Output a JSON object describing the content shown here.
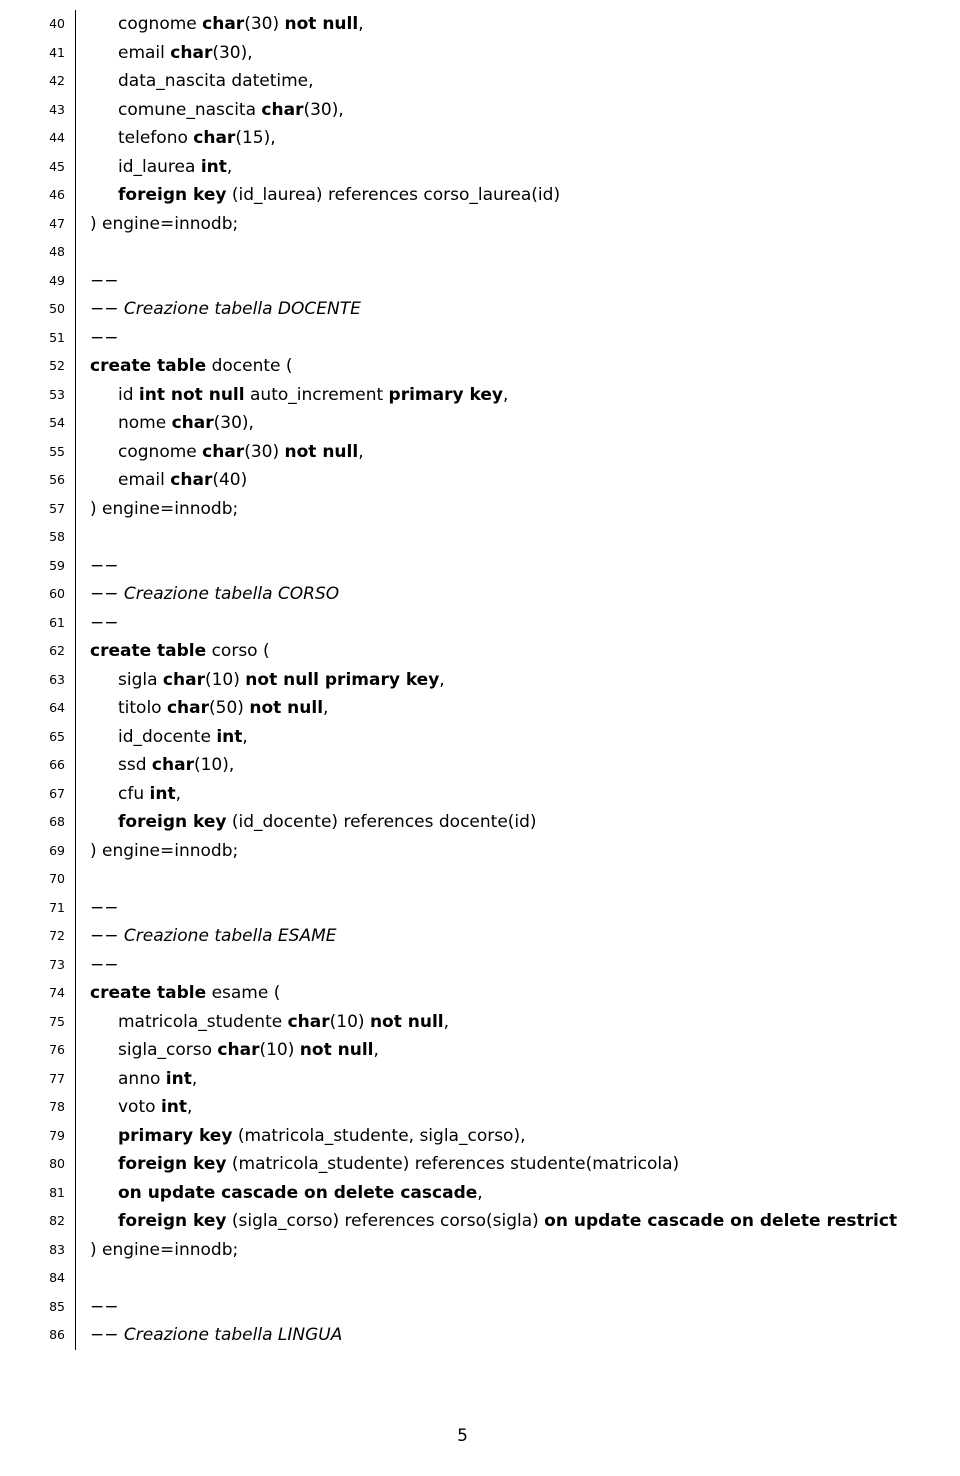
{
  "pageNumber": "5",
  "gutter": {
    "start": 40,
    "end": 86
  },
  "lines": [
    {
      "n": 40,
      "html": "<span class='ind1'>cognome <span class='b'>char</span>(30) <span class='b'>not null</span>,</span>"
    },
    {
      "n": 41,
      "html": "<span class='ind1'>email <span class='b'>char</span>(30),</span>"
    },
    {
      "n": 42,
      "html": "<span class='ind1'>data_nascita datetime,</span>"
    },
    {
      "n": 43,
      "html": "<span class='ind1'>comune_nascita <span class='b'>char</span>(30),</span>"
    },
    {
      "n": 44,
      "html": "<span class='ind1'>telefono <span class='b'>char</span>(15),</span>"
    },
    {
      "n": 45,
      "html": "<span class='ind1'>id_laurea <span class='b'>int</span>,</span>"
    },
    {
      "n": 46,
      "html": "<span class='ind1'><span class='b'>foreign key</span> (id_laurea) references corso_laurea(id)</span>"
    },
    {
      "n": 47,
      "html": ") engine=innodb;"
    },
    {
      "n": 48,
      "html": ""
    },
    {
      "n": 49,
      "html": "−−"
    },
    {
      "n": 50,
      "html": "<span class='it'>−− Creazione tabella DOCENTE</span>"
    },
    {
      "n": 51,
      "html": "−−"
    },
    {
      "n": 52,
      "html": "<span class='b'>create table</span> docente ("
    },
    {
      "n": 53,
      "html": "<span class='ind1'>id <span class='b'>int not null</span> auto_increment <span class='b'>primary key</span>,</span>"
    },
    {
      "n": 54,
      "html": "<span class='ind1'>nome <span class='b'>char</span>(30),</span>"
    },
    {
      "n": 55,
      "html": "<span class='ind1'>cognome <span class='b'>char</span>(30) <span class='b'>not null</span>,</span>"
    },
    {
      "n": 56,
      "html": "<span class='ind1'>email <span class='b'>char</span>(40)</span>"
    },
    {
      "n": 57,
      "html": ") engine=innodb;"
    },
    {
      "n": 58,
      "html": ""
    },
    {
      "n": 59,
      "html": "−−"
    },
    {
      "n": 60,
      "html": "<span class='it'>−− Creazione tabella CORSO</span>"
    },
    {
      "n": 61,
      "html": "−−"
    },
    {
      "n": 62,
      "html": "<span class='b'>create table</span> corso ("
    },
    {
      "n": 63,
      "html": "<span class='ind1'>sigla <span class='b'>char</span>(10) <span class='b'>not null primary key</span>,</span>"
    },
    {
      "n": 64,
      "html": "<span class='ind1'>titolo <span class='b'>char</span>(50) <span class='b'>not null</span>,</span>"
    },
    {
      "n": 65,
      "html": "<span class='ind1'>id_docente <span class='b'>int</span>,</span>"
    },
    {
      "n": 66,
      "html": "<span class='ind1'>ssd <span class='b'>char</span>(10),</span>"
    },
    {
      "n": 67,
      "html": "<span class='ind1'>cfu <span class='b'>int</span>,</span>"
    },
    {
      "n": 68,
      "html": "<span class='ind1'><span class='b'>foreign key</span> (id_docente) references docente(id)</span>"
    },
    {
      "n": 69,
      "html": ") engine=innodb;"
    },
    {
      "n": 70,
      "html": ""
    },
    {
      "n": 71,
      "html": "−−"
    },
    {
      "n": 72,
      "html": "<span class='it'>−− Creazione tabella ESAME</span>"
    },
    {
      "n": 73,
      "html": "−−"
    },
    {
      "n": 74,
      "html": "<span class='b'>create table</span> esame ("
    },
    {
      "n": 75,
      "html": "<span class='ind1'>matricola_studente <span class='b'>char</span>(10) <span class='b'>not null</span>,</span>"
    },
    {
      "n": 76,
      "html": "<span class='ind1'>sigla_corso <span class='b'>char</span>(10) <span class='b'>not null</span>,</span>"
    },
    {
      "n": 77,
      "html": "<span class='ind1'>anno <span class='b'>int</span>,</span>"
    },
    {
      "n": 78,
      "html": "<span class='ind1'>voto <span class='b'>int</span>,</span>"
    },
    {
      "n": 79,
      "html": "<span class='ind1'><span class='b'>primary key</span> (matricola_studente, sigla_corso),</span>"
    },
    {
      "n": 80,
      "html": "<span class='ind1'><span class='b'>foreign key</span> (matricola_studente) references studente(matricola)</span>"
    },
    {
      "n": 81,
      "html": "<span class='ind1'><span class='b'>on update cascade on delete cascade</span>,</span>"
    },
    {
      "n": 82,
      "html": "<span class='ind1'><span class='b'>foreign key</span> (sigla_corso) references corso(sigla) <span class='b'>on update cascade on delete restrict</span></span>"
    },
    {
      "n": 83,
      "html": ") engine=innodb;"
    },
    {
      "n": 84,
      "html": ""
    },
    {
      "n": 85,
      "html": "−−"
    },
    {
      "n": 86,
      "html": "<span class='it'>−− Creazione tabella LINGUA</span>"
    }
  ]
}
